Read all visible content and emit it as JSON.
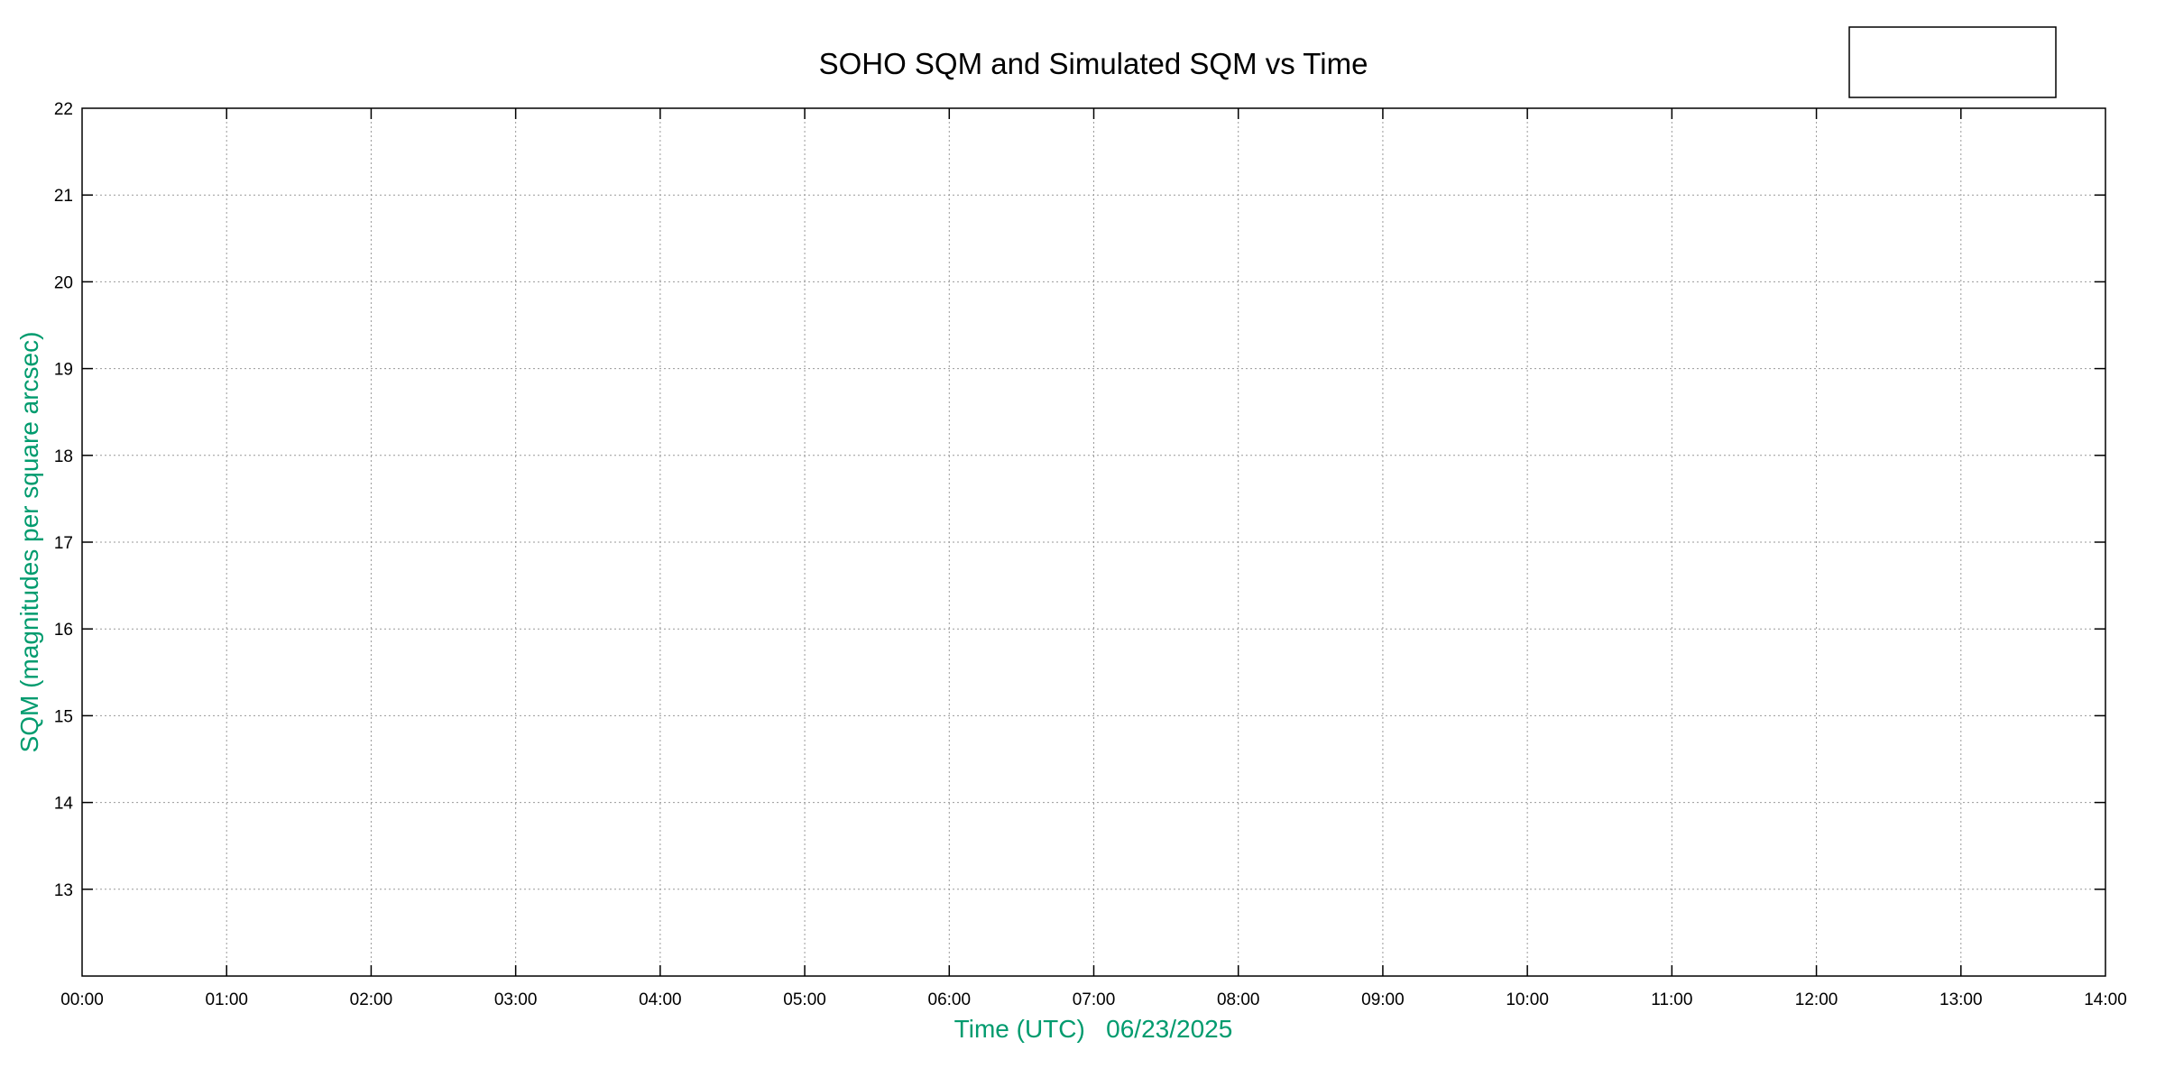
{
  "chart_data": {
    "type": "line",
    "title": "SOHO SQM and Simulated SQM vs Time",
    "xlabel": "Time (UTC)   06/23/2025",
    "ylabel": "SQM (magnitudes per square arcsec)",
    "x_tick_labels": [
      "00:00",
      "01:00",
      "02:00",
      "03:00",
      "04:00",
      "05:00",
      "06:00",
      "07:00",
      "08:00",
      "09:00",
      "10:00",
      "11:00",
      "12:00",
      "13:00",
      "14:00"
    ],
    "y_ticks": [
      13,
      14,
      15,
      16,
      17,
      18,
      19,
      20,
      21,
      22
    ],
    "xlim": [
      "00:00",
      "14:00"
    ],
    "ylim": [
      12,
      22
    ],
    "grid": true,
    "legend": {
      "placement": "top-right",
      "entries": []
    },
    "series": [],
    "colors": {
      "axis_label": "#009b6e",
      "grid": "#999999",
      "axes": "#000000"
    }
  }
}
